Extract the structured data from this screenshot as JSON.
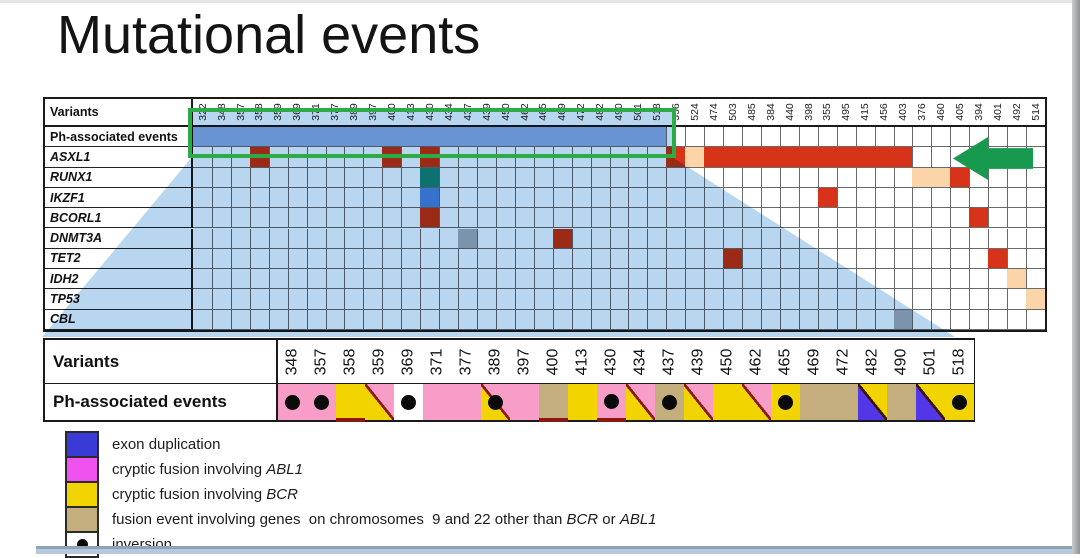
{
  "slide": {
    "title": "Mutational events"
  },
  "colors": {
    "beam_blue": "#b9d6f0",
    "highlight_green": "#2cab47",
    "arrow_green": "#189a4e",
    "mark_red": "#d63318",
    "mark_peach": "#fbd4a8",
    "mark_teal": "#0f8878",
    "mark_blue": "#4a86d8",
    "mark_gray": "#aab0b6",
    "ph_fill_blue": "#8fb0e2",
    "cell_pink": "#f89cc8",
    "cell_yellow": "#f2d500",
    "cell_tan": "#c4ae7e",
    "cell_white": "#ffffff",
    "cell_blueviolet": "#5336e8",
    "legend_blue": "#3a3ad6",
    "legend_magenta": "#ef52ef",
    "red_underline": "#8b1810",
    "dot_black": "#0a0a0a"
  },
  "top_table": {
    "corner_label": "Variants",
    "ph_row_label": "Ph-associated events"
  },
  "bottom_table": {
    "variants_label": "Variants",
    "ph_label": "Ph-associated events"
  },
  "chart_data": {
    "type": "heatmap",
    "title": "Mutational events",
    "columns": [
      "322",
      "348",
      "357",
      "358",
      "359",
      "369",
      "371",
      "377",
      "389",
      "397",
      "400",
      "413",
      "430",
      "434",
      "437",
      "439",
      "450",
      "462",
      "465",
      "469",
      "472",
      "482",
      "490",
      "501",
      "518",
      "356",
      "524",
      "474",
      "503",
      "485",
      "384",
      "440",
      "398",
      "355",
      "495",
      "415",
      "456",
      "403",
      "376",
      "460",
      "405",
      "394",
      "401",
      "492",
      "514"
    ],
    "rows": [
      "Ph-associated events",
      "ASXL1",
      "RUNX1",
      "IKZF1",
      "BCORL1",
      "DNMT3A",
      "TET2",
      "IDH2",
      "TP53",
      "CBL"
    ],
    "ph_highlighted_columns": [
      "322",
      "348",
      "357",
      "358",
      "359",
      "369",
      "371",
      "377",
      "389",
      "397",
      "400",
      "413",
      "430",
      "434",
      "437",
      "439",
      "450",
      "462",
      "465",
      "469",
      "472",
      "482",
      "490",
      "501",
      "518"
    ],
    "marks": {
      "ASXL1": [
        [
          "358",
          "red"
        ],
        [
          "400",
          "red"
        ],
        [
          "430",
          "red"
        ],
        [
          "356",
          "red"
        ],
        [
          "524",
          "peach"
        ],
        [
          "474",
          "red"
        ],
        [
          "503",
          "red"
        ],
        [
          "485",
          "red"
        ],
        [
          "384",
          "red"
        ],
        [
          "440",
          "red"
        ],
        [
          "398",
          "red"
        ],
        [
          "355",
          "red"
        ],
        [
          "495",
          "red"
        ],
        [
          "415",
          "red"
        ],
        [
          "456",
          "red"
        ],
        [
          "403",
          "red"
        ]
      ],
      "RUNX1": [
        [
          "430",
          "teal"
        ],
        [
          "376",
          "peach"
        ],
        [
          "460",
          "peach"
        ],
        [
          "405",
          "red"
        ]
      ],
      "IKZF1": [
        [
          "430",
          "blue"
        ],
        [
          "355",
          "red"
        ]
      ],
      "BCORL1": [
        [
          "430",
          "red"
        ],
        [
          "394",
          "red"
        ]
      ],
      "DNMT3A": [
        [
          "437",
          "gray"
        ],
        [
          "469",
          "red"
        ]
      ],
      "TET2": [
        [
          "503",
          "red"
        ],
        [
          "401",
          "red"
        ]
      ],
      "IDH2": [
        [
          "492",
          "peach"
        ]
      ],
      "TP53": [
        [
          "514",
          "peach"
        ]
      ],
      "CBL": [
        [
          "403",
          "gray"
        ]
      ]
    },
    "bottom_panel": {
      "cells": [
        {
          "col": "348",
          "fill": "pink",
          "dot": true
        },
        {
          "col": "357",
          "fill": "pink",
          "dot": true
        },
        {
          "col": "358",
          "fill": "yellow",
          "red_underline": true
        },
        {
          "col": "359",
          "fill": "diag-pink-yellow"
        },
        {
          "col": "369",
          "fill": "white",
          "dot": true
        },
        {
          "col": "371",
          "fill": "pink"
        },
        {
          "col": "377",
          "fill": "pink"
        },
        {
          "col": "389",
          "fill": "diag-pink-yellow",
          "dot": true
        },
        {
          "col": "397",
          "fill": "pink"
        },
        {
          "col": "400",
          "fill": "tan",
          "red_underline": true
        },
        {
          "col": "413",
          "fill": "yellow"
        },
        {
          "col": "430",
          "fill": "pink",
          "dot": true,
          "red_underline": true
        },
        {
          "col": "434",
          "fill": "diag-pink-yellow"
        },
        {
          "col": "437",
          "fill": "tan",
          "dot": true
        },
        {
          "col": "439",
          "fill": "diag-pink-yellow"
        },
        {
          "col": "450",
          "fill": "yellow"
        },
        {
          "col": "462",
          "fill": "diag-pink-yellow"
        },
        {
          "col": "465",
          "fill": "yellow",
          "dot": true
        },
        {
          "col": "469",
          "fill": "tan"
        },
        {
          "col": "472",
          "fill": "tan"
        },
        {
          "col": "482",
          "fill": "diag-blue-yellow"
        },
        {
          "col": "490",
          "fill": "tan"
        },
        {
          "col": "501",
          "fill": "diag-blue-yellow"
        },
        {
          "col": "518",
          "fill": "yellow",
          "dot": true
        }
      ]
    }
  },
  "legend": {
    "items": [
      {
        "swatch": "blue",
        "parts": [
          [
            "exon duplication",
            false
          ]
        ]
      },
      {
        "swatch": "magenta",
        "parts": [
          [
            "cryptic fusion involving ",
            false
          ],
          [
            "ABL1",
            true
          ]
        ]
      },
      {
        "swatch": "yellow",
        "parts": [
          [
            "cryptic fusion involving ",
            false
          ],
          [
            "BCR",
            true
          ]
        ]
      },
      {
        "swatch": "tan",
        "parts": [
          [
            "fusion event involving genes  on chromosomes  9 and 22 other than ",
            false
          ],
          [
            "BCR",
            true
          ],
          [
            " or ",
            false
          ],
          [
            "ABL1",
            true
          ]
        ]
      },
      {
        "swatch": "dot",
        "parts": [
          [
            "inversion",
            false
          ]
        ]
      }
    ]
  }
}
